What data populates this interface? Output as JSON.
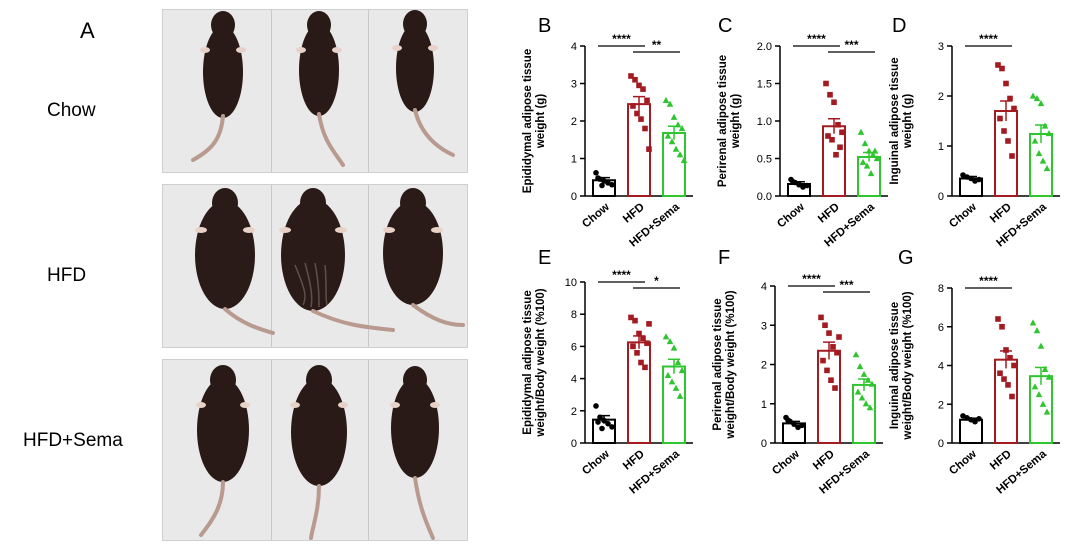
{
  "figure": {
    "panel_a": {
      "letter": "A",
      "rows": [
        {
          "label": "Chow"
        },
        {
          "label": "HFD"
        },
        {
          "label": "HFD+Sema"
        }
      ]
    }
  },
  "colors": {
    "chow": "#000000",
    "hfd": "#a31b21",
    "sema": "#2fc52f"
  },
  "chart_data": [
    {
      "panel": "B",
      "type": "bar",
      "title": "",
      "ylabel": "Epididymal adipose tissue weight (g)",
      "ylim": [
        0,
        4
      ],
      "yticks": [
        "0",
        "1",
        "2",
        "3",
        "4"
      ],
      "categories": [
        "Chow",
        "HFD",
        "HFD+Sema"
      ],
      "values": [
        0.42,
        2.45,
        1.68
      ],
      "errors": [
        0.07,
        0.2,
        0.18
      ],
      "points": [
        [
          0.62,
          0.45,
          0.4,
          0.35,
          0.3,
          0.48,
          0.28
        ],
        [
          3.2,
          3.1,
          2.95,
          2.85,
          2.55,
          2.4,
          2.2,
          2.05,
          1.8,
          1.25
        ],
        [
          2.55,
          2.45,
          2.1,
          1.9,
          1.8,
          1.6,
          1.45,
          1.25,
          1.1,
          0.95
        ]
      ],
      "significance": [
        {
          "from": 0,
          "to": 1,
          "label": "****"
        },
        {
          "from": 1,
          "to": 2,
          "label": "**"
        }
      ]
    },
    {
      "panel": "C",
      "type": "bar",
      "title": "",
      "ylabel": "Perirenal adipose tissue weight (g)",
      "ylim": [
        0,
        2.0
      ],
      "yticks": [
        "0.0",
        "0.5",
        "1.0",
        "1.5",
        "2.0"
      ],
      "categories": [
        "Chow",
        "HFD",
        "HFD+Sema"
      ],
      "values": [
        0.16,
        0.93,
        0.52
      ],
      "errors": [
        0.03,
        0.1,
        0.06
      ],
      "points": [
        [
          0.22,
          0.18,
          0.15,
          0.12,
          0.14,
          0.19
        ],
        [
          1.5,
          1.35,
          1.25,
          0.95,
          0.85,
          0.8,
          0.75,
          0.55,
          0.65
        ],
        [
          0.85,
          0.7,
          0.6,
          0.55,
          0.5,
          0.45,
          0.4,
          0.3,
          0.6
        ]
      ],
      "significance": [
        {
          "from": 0,
          "to": 1,
          "label": "****"
        },
        {
          "from": 1,
          "to": 2,
          "label": "***"
        }
      ]
    },
    {
      "panel": "D",
      "type": "bar",
      "title": "",
      "ylabel": "Inguinal adipose tissue weight (g)",
      "ylim": [
        0,
        3
      ],
      "yticks": [
        "0",
        "1",
        "2",
        "3"
      ],
      "categories": [
        "Chow",
        "HFD",
        "HFD+Sema"
      ],
      "values": [
        0.35,
        1.7,
        1.24
      ],
      "errors": [
        0.04,
        0.2,
        0.18
      ],
      "points": [
        [
          0.42,
          0.38,
          0.35,
          0.3,
          0.33
        ],
        [
          2.62,
          2.55,
          2.25,
          1.95,
          1.75,
          1.55,
          1.3,
          1.1,
          0.8
        ],
        [
          2.0,
          1.95,
          1.85,
          1.4,
          1.25,
          1.1,
          0.85,
          0.7,
          0.55
        ]
      ],
      "significance": [
        {
          "from": 0,
          "to": 1,
          "label": "****"
        }
      ]
    },
    {
      "panel": "E",
      "type": "bar",
      "title": "",
      "ylabel": "Epididymal adipose tissue weight/Body weight (%100)",
      "ylim": [
        0,
        10
      ],
      "yticks": [
        "0",
        "2",
        "4",
        "6",
        "8",
        "10"
      ],
      "categories": [
        "Chow",
        "HFD",
        "HFD+Sema"
      ],
      "values": [
        1.45,
        6.25,
        4.75
      ],
      "errors": [
        0.25,
        0.4,
        0.45
      ],
      "points": [
        [
          2.3,
          1.6,
          1.4,
          1.2,
          1.0,
          1.3,
          0.9
        ],
        [
          7.8,
          7.6,
          6.8,
          6.5,
          6.2,
          6.0,
          5.6,
          5.0,
          4.7,
          7.4
        ],
        [
          6.6,
          6.3,
          5.9,
          5.0,
          4.5,
          4.2,
          3.8,
          3.4,
          2.9
        ]
      ],
      "significance": [
        {
          "from": 0,
          "to": 1,
          "label": "****"
        },
        {
          "from": 1,
          "to": 2,
          "label": "*"
        }
      ]
    },
    {
      "panel": "F",
      "type": "bar",
      "title": "",
      "ylabel": "Perirenal adipose tissue weight/Body weight (%100)",
      "ylim": [
        0,
        4
      ],
      "yticks": [
        "0",
        "1",
        "2",
        "3",
        "4"
      ],
      "categories": [
        "Chow",
        "HFD",
        "HFD+Sema"
      ],
      "values": [
        0.5,
        2.35,
        1.48
      ],
      "errors": [
        0.05,
        0.22,
        0.15
      ],
      "points": [
        [
          0.65,
          0.55,
          0.48,
          0.4,
          0.45,
          0.58
        ],
        [
          3.2,
          3.0,
          2.8,
          2.45,
          2.3,
          2.1,
          1.85,
          1.6,
          1.4,
          2.7
        ],
        [
          2.25,
          1.95,
          1.75,
          1.6,
          1.5,
          1.3,
          1.15,
          1.0,
          0.9
        ]
      ],
      "significance": [
        {
          "from": 0,
          "to": 1,
          "label": "****"
        },
        {
          "from": 1,
          "to": 2,
          "label": "***"
        }
      ]
    },
    {
      "panel": "G",
      "type": "bar",
      "title": "",
      "ylabel": "Inguinal adipose tissue weight/Body weight (%100)",
      "ylim": [
        0,
        8
      ],
      "yticks": [
        "0",
        "2",
        "4",
        "6",
        "8"
      ],
      "categories": [
        "Chow",
        "HFD",
        "HFD+Sema"
      ],
      "values": [
        1.2,
        4.3,
        3.45
      ],
      "errors": [
        0.08,
        0.45,
        0.45
      ],
      "points": [
        [
          1.4,
          1.3,
          1.2,
          1.1,
          1.25
        ],
        [
          6.4,
          6.0,
          4.8,
          4.4,
          4.0,
          3.6,
          3.3,
          3.0,
          2.4
        ],
        [
          6.2,
          5.8,
          5.0,
          3.8,
          3.4,
          2.9,
          2.5,
          2.0,
          1.6
        ]
      ],
      "significance": [
        {
          "from": 0,
          "to": 1,
          "label": "****"
        }
      ]
    }
  ]
}
